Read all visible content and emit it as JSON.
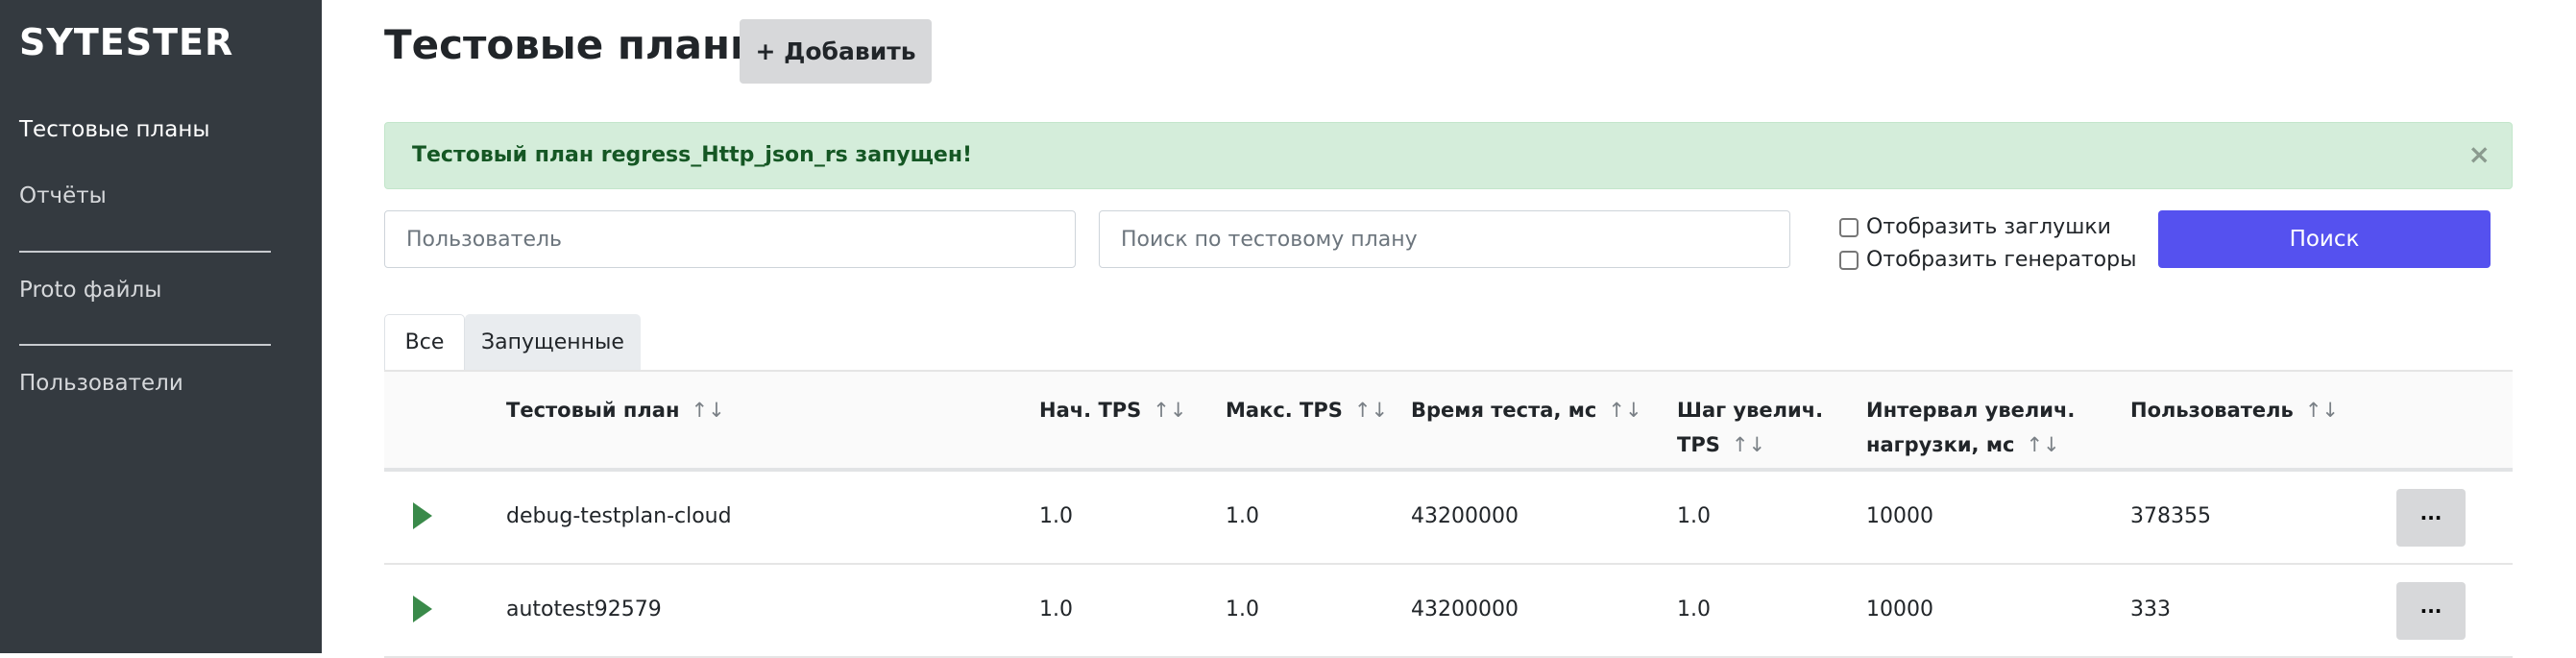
{
  "sidebar": {
    "logo": "SYTESTER",
    "items": [
      {
        "label": "Тестовые планы"
      },
      {
        "label": "Отчёты"
      },
      {
        "label": "Proto файлы"
      },
      {
        "label": "Пользователи"
      }
    ]
  },
  "header": {
    "title": "Тестовые планы",
    "add_label": "+ Добавить"
  },
  "alert": {
    "text": "Тестовый план regress_Http_json_rs запущен!",
    "close": "×"
  },
  "filters": {
    "user_placeholder": "Пользователь",
    "plan_placeholder": "Поиск по тестовому плану",
    "show_stubs": "Отобразить заглушки",
    "show_generators": "Отобразить генераторы",
    "search_label": "Поиск"
  },
  "tabs": [
    {
      "label": "Все"
    },
    {
      "label": "Запущенные"
    }
  ],
  "table": {
    "sort_icon": "↑↓",
    "columns": [
      "Тестовый план",
      "Нач. TPS",
      "Макс. TPS",
      "Время теста, мс",
      "Шаг увелич. TPS",
      "Интервал увелич. нагрузки, мс",
      "Пользователь"
    ],
    "rows": [
      {
        "name": "debug-testplan-cloud",
        "start_tps": "1.0",
        "max_tps": "1.0",
        "duration": "43200000",
        "step": "1.0",
        "interval": "10000",
        "user": "378355",
        "more": "···"
      },
      {
        "name": "autotest92579",
        "start_tps": "1.0",
        "max_tps": "1.0",
        "duration": "43200000",
        "step": "1.0",
        "interval": "10000",
        "user": "333",
        "more": "···"
      }
    ]
  },
  "colors": {
    "sidebar": "#343a40",
    "primary": "#5551ef",
    "success_bg": "#d4edda",
    "success_text": "#155724",
    "play": "#3a8a4a"
  }
}
